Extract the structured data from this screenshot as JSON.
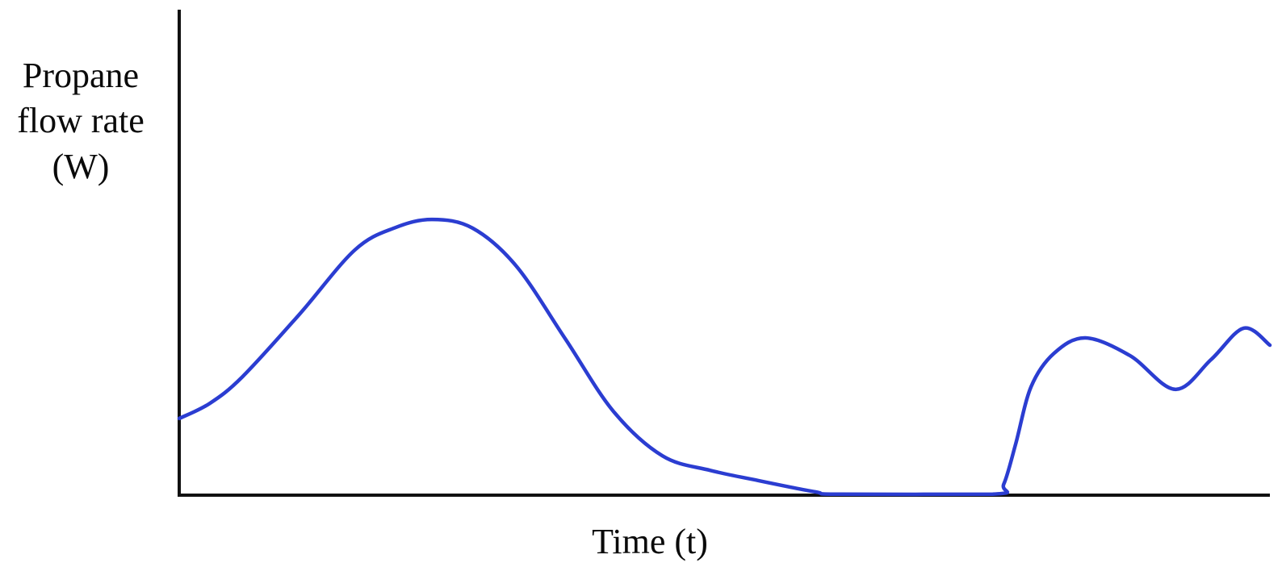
{
  "chart_data": {
    "type": "line",
    "title": "",
    "xlabel": "Time (t)",
    "ylabel": "Propane flow rate (W)",
    "ylabel_lines": [
      "Propane",
      "flow rate",
      "(W)"
    ],
    "x_axis": {
      "label": "Time (t)",
      "range": [
        0,
        100
      ],
      "ticks": [],
      "grid": false
    },
    "y_axis": {
      "label": "Propane flow rate (W)",
      "range": [
        0,
        100
      ],
      "ticks": [],
      "grid": false
    },
    "legend": "none",
    "line_color": "#2B3DD1",
    "axis_color": "#111111",
    "line_width": 4.5,
    "axis_width": 4,
    "series": [
      {
        "name": "propane-flow-rate",
        "points": [
          [
            0.0,
            15.8
          ],
          [
            2.8,
            18.9
          ],
          [
            5.8,
            24.4
          ],
          [
            11.0,
            37.2
          ],
          [
            16.1,
            50.5
          ],
          [
            19.8,
            55.1
          ],
          [
            23.2,
            56.8
          ],
          [
            26.9,
            55.0
          ],
          [
            30.9,
            47.2
          ],
          [
            35.4,
            32.2
          ],
          [
            39.8,
            17.3
          ],
          [
            44.3,
            8.1
          ],
          [
            48.7,
            5.1
          ],
          [
            53.1,
            3.0
          ],
          [
            58.3,
            0.7
          ],
          [
            60.5,
            0.2
          ],
          [
            74.6,
            0.2
          ],
          [
            75.6,
            2.3
          ],
          [
            76.7,
            10.6
          ],
          [
            78.1,
            22.3
          ],
          [
            80.2,
            29.2
          ],
          [
            83.1,
            32.4
          ],
          [
            87.2,
            28.7
          ],
          [
            91.3,
            21.8
          ],
          [
            94.6,
            27.9
          ],
          [
            97.6,
            34.4
          ],
          [
            100.0,
            30.9
          ]
        ]
      }
    ]
  }
}
